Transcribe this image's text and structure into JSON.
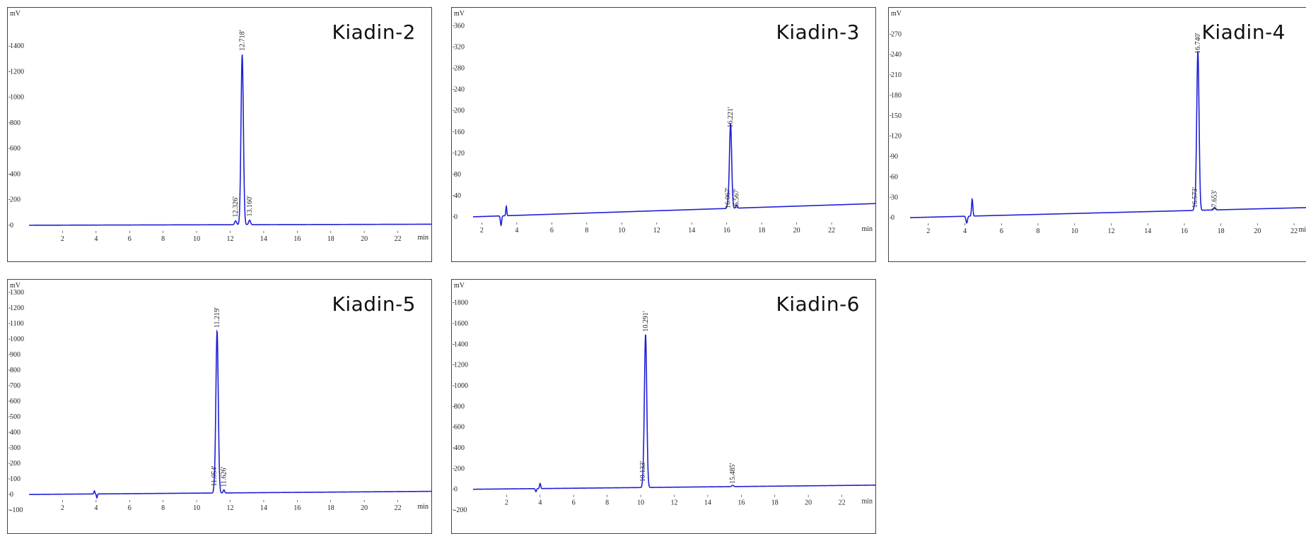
{
  "colors": {
    "trace": "#1f1fd6",
    "axis": "#333333",
    "baseline": "#888888"
  },
  "chart_data": [
    {
      "type": "line",
      "title": "Kiadin-2",
      "ylabel": "mV",
      "xlabel": "min",
      "xlim": [
        0,
        24
      ],
      "ylim": [
        -100,
        1600
      ],
      "yticks": [
        0,
        200,
        400,
        600,
        800,
        1000,
        1200,
        1400
      ],
      "xticks": [
        2,
        4,
        6,
        8,
        10,
        12,
        14,
        16,
        18,
        20,
        22
      ],
      "baseline": {
        "start": 0,
        "end": 8
      },
      "glitches": [],
      "peaks": [
        {
          "rt": 12.326,
          "height": 30,
          "width": 0.08,
          "label": "12.326'"
        },
        {
          "rt": 12.718,
          "height": 1330,
          "width": 0.1,
          "label": "12.718'"
        },
        {
          "rt": 13.16,
          "height": 35,
          "width": 0.08,
          "label": "13.160'"
        }
      ]
    },
    {
      "type": "line",
      "title": "Kiadin-3",
      "ylabel": "mV",
      "xlabel": "min",
      "xlim": [
        1.5,
        24.5
      ],
      "ylim": [
        -40,
        370
      ],
      "yticks": [
        0,
        40,
        80,
        120,
        160,
        200,
        240,
        280,
        320,
        360
      ],
      "xticks": [
        2,
        4,
        6,
        8,
        10,
        12,
        14,
        16,
        18,
        20,
        22
      ],
      "baseline": {
        "start": 0,
        "end": 25
      },
      "glitches": [
        {
          "rt": 3.1,
          "height": -18,
          "width": 0.05
        },
        {
          "rt": 3.4,
          "height": 18,
          "width": 0.04
        }
      ],
      "peaks": [
        {
          "rt": 16.067,
          "height": 8,
          "width": 0.06,
          "label": "16.067'"
        },
        {
          "rt": 16.221,
          "height": 160,
          "width": 0.09,
          "label": "16.221'"
        },
        {
          "rt": 16.567,
          "height": 6,
          "width": 0.06,
          "label": "16.567'"
        }
      ]
    },
    {
      "type": "line",
      "title": "Kiadin-4",
      "ylabel": "mV",
      "xlabel": "min",
      "xlim": [
        1,
        23
      ],
      "ylim": [
        -30,
        290
      ],
      "yticks": [
        0,
        30,
        60,
        90,
        120,
        150,
        180,
        210,
        240,
        270
      ],
      "xticks": [
        2,
        4,
        6,
        8,
        10,
        12,
        14,
        16,
        18,
        20,
        22
      ],
      "baseline": {
        "start": 0,
        "end": 15
      },
      "glitches": [
        {
          "rt": 4.1,
          "height": -10,
          "width": 0.06
        },
        {
          "rt": 4.4,
          "height": 25,
          "width": 0.05
        }
      ],
      "peaks": [
        {
          "rt": 16.573,
          "height": 8,
          "width": 0.06,
          "label": "16.573'"
        },
        {
          "rt": 16.74,
          "height": 235,
          "width": 0.09,
          "label": "16.740'"
        },
        {
          "rt": 17.653,
          "height": 4,
          "width": 0.06,
          "label": "17.653'"
        }
      ]
    },
    {
      "type": "line",
      "title": "Kiadin-5",
      "ylabel": "mV",
      "xlabel": "min",
      "xlim": [
        0,
        24
      ],
      "ylim": [
        -100,
        1300
      ],
      "yticks": [
        -100,
        0,
        100,
        200,
        300,
        400,
        500,
        600,
        700,
        800,
        900,
        1000,
        1100,
        1200,
        1300
      ],
      "xticks": [
        2,
        4,
        6,
        8,
        10,
        12,
        14,
        16,
        18,
        20,
        22
      ],
      "baseline": {
        "start": 0,
        "end": 20
      },
      "glitches": [
        {
          "rt": 3.9,
          "height": 20,
          "width": 0.04
        },
        {
          "rt": 4.05,
          "height": -25,
          "width": 0.04
        }
      ],
      "peaks": [
        {
          "rt": 11.054,
          "height": 25,
          "width": 0.06,
          "label": "11.054'"
        },
        {
          "rt": 11.219,
          "height": 1045,
          "width": 0.1,
          "label": "11.219'"
        },
        {
          "rt": 11.626,
          "height": 20,
          "width": 0.06,
          "label": "11.626'"
        }
      ]
    },
    {
      "type": "line",
      "title": "Kiadin-6",
      "ylabel": "mV",
      "xlabel": "min",
      "xlim": [
        0,
        24
      ],
      "ylim": [
        -200,
        1900
      ],
      "yticks": [
        -200,
        0,
        200,
        400,
        600,
        800,
        1000,
        1200,
        1400,
        1600,
        1800
      ],
      "xticks": [
        2,
        4,
        6,
        8,
        10,
        12,
        14,
        16,
        18,
        20,
        22
      ],
      "baseline": {
        "start": 0,
        "end": 40
      },
      "glitches": [
        {
          "rt": 3.75,
          "height": -30,
          "width": 0.05
        },
        {
          "rt": 4.0,
          "height": 50,
          "width": 0.05
        }
      ],
      "peaks": [
        {
          "rt": 10.133,
          "height": 30,
          "width": 0.06,
          "label": "10.133'"
        },
        {
          "rt": 10.291,
          "height": 1480,
          "width": 0.1,
          "label": "10.291'"
        },
        {
          "rt": 15.485,
          "height": 12,
          "width": 0.08,
          "label": "15.485'"
        }
      ]
    }
  ]
}
